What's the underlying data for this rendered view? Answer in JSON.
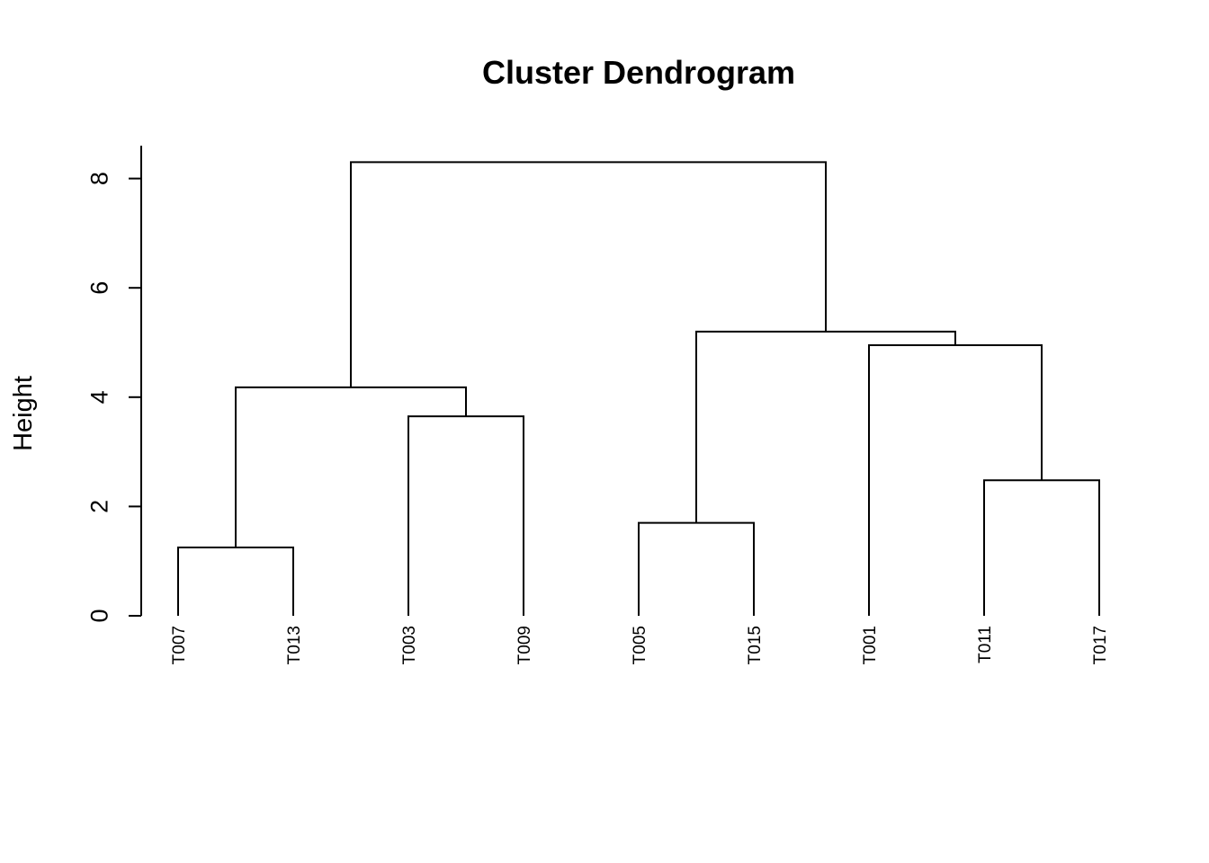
{
  "chart_data": {
    "type": "dendrogram",
    "title": "Cluster Dendrogram",
    "ylabel": "Height",
    "ylim": [
      0,
      8.6
    ],
    "yticks": [
      0,
      2,
      4,
      6,
      8
    ],
    "leaves": [
      "T007",
      "T013",
      "T003",
      "T009",
      "T005",
      "T015",
      "T001",
      "T011",
      "T017"
    ],
    "merges": [
      {
        "left": "T007",
        "right": "T013",
        "height": 1.25
      },
      {
        "left": "T005",
        "right": "T015",
        "height": 1.7
      },
      {
        "left": "T011",
        "right": "T017",
        "height": 2.48
      },
      {
        "left": "T003",
        "right": "T009",
        "height": 3.65
      },
      {
        "left": "T007+T013",
        "right": "T003+T009",
        "height": 4.18
      },
      {
        "left": "T001",
        "right": "T011+T017",
        "height": 4.95
      },
      {
        "left": "T005+T015",
        "right": "T001+T011+T017",
        "height": 5.2
      },
      {
        "left": "T007+T013+T003+T009",
        "right": "T005+T015+T001+T011+T017",
        "height": 8.3
      }
    ]
  }
}
